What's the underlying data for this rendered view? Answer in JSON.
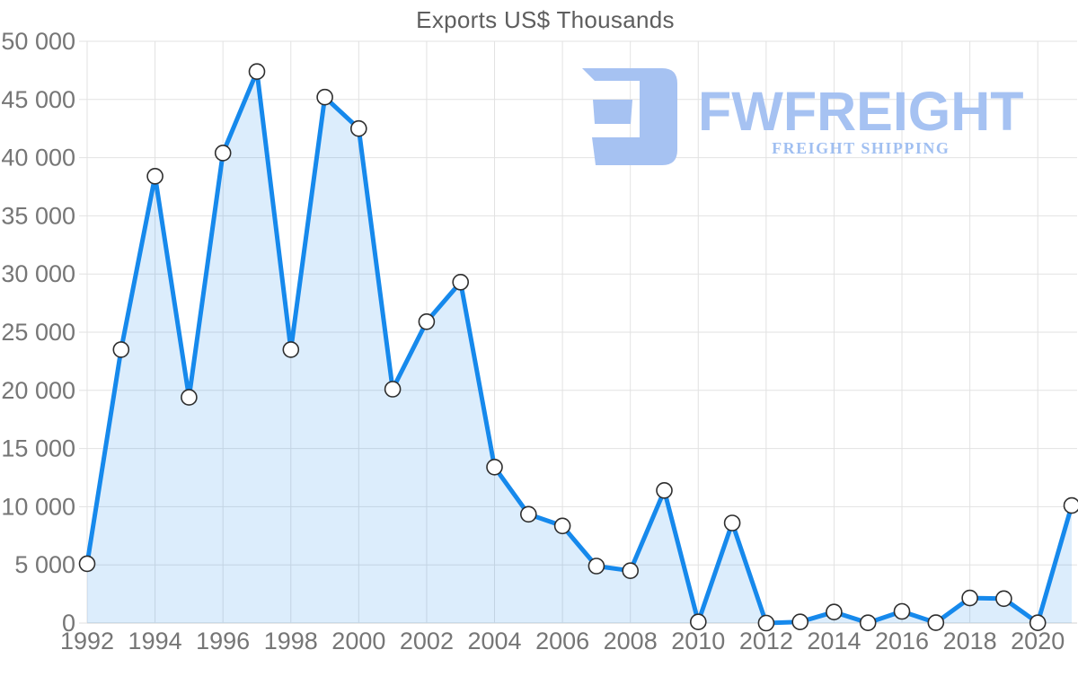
{
  "title": "Exports US$ Thousands",
  "logo": {
    "brand": "FWFREIGHT",
    "tagline": "FREIGHT SHIPPING",
    "color": "#a6c2f2"
  },
  "chart_data": {
    "type": "area",
    "title": "Exports US$ Thousands",
    "x": [
      1992,
      1993,
      1994,
      1995,
      1996,
      1997,
      1998,
      1999,
      2000,
      2001,
      2002,
      2003,
      2004,
      2005,
      2006,
      2007,
      2008,
      2009,
      2010,
      2011,
      2012,
      2013,
      2014,
      2015,
      2016,
      2017,
      2018,
      2019,
      2020,
      2021
    ],
    "values": [
      5100,
      23500,
      38400,
      19400,
      40400,
      47400,
      23500,
      45200,
      42500,
      20100,
      25900,
      29300,
      13400,
      9350,
      8350,
      4900,
      4500,
      11400,
      100,
      8600,
      0,
      100,
      950,
      20,
      1000,
      30,
      2150,
      2100,
      20,
      10100
    ],
    "xlabel": "",
    "ylabel": "",
    "xlim": [
      1992,
      2021
    ],
    "ylim": [
      0,
      50000
    ],
    "ytick_step": 5000,
    "ytick_labels": [
      "0",
      "5 000",
      "10 000",
      "15 000",
      "20 000",
      "25 000",
      "30 000",
      "35 000",
      "40 000",
      "45 000",
      "50 000"
    ],
    "xticks": [
      1992,
      1994,
      1996,
      1998,
      2000,
      2002,
      2004,
      2006,
      2008,
      2010,
      2012,
      2014,
      2016,
      2018,
      2020
    ],
    "grid": true,
    "legend": "none",
    "marker": "circle",
    "colors": {
      "line": "#1689ec",
      "fill": "rgba(22,137,236,0.15)",
      "marker_fill": "#ffffff",
      "marker_stroke": "#2e2e2e",
      "grid": "#e2e2e2",
      "axis_line": "#d2d2d2",
      "tick_label": "#767676",
      "title": "#5e5e5e"
    }
  }
}
